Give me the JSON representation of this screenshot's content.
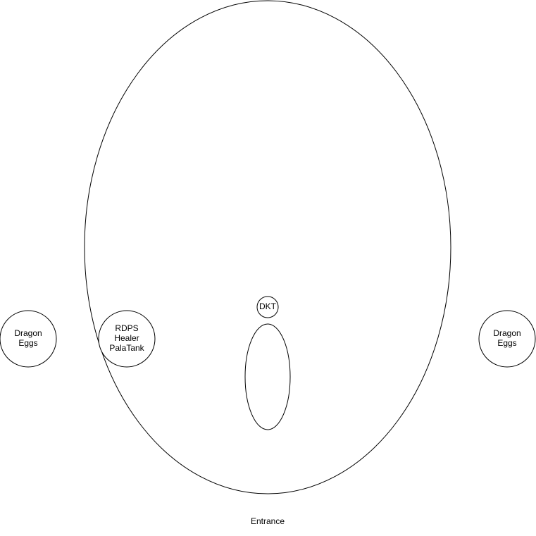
{
  "diagram": {
    "colors": {
      "stroke": "#000000",
      "fill": "#ffffff",
      "text": "#000000"
    },
    "nodes": {
      "arena": {
        "label": ""
      },
      "left_eggs": {
        "lines": [
          "Dragon",
          "Eggs"
        ]
      },
      "right_eggs": {
        "lines": [
          "Dragon",
          "Eggs"
        ]
      },
      "raid_group": {
        "lines": [
          "RDPS",
          "Healer",
          "PalaTank"
        ]
      },
      "dkt": {
        "label": "DKT"
      },
      "boss_area": {
        "label": ""
      }
    },
    "entrance": {
      "label": "Entrance"
    }
  }
}
